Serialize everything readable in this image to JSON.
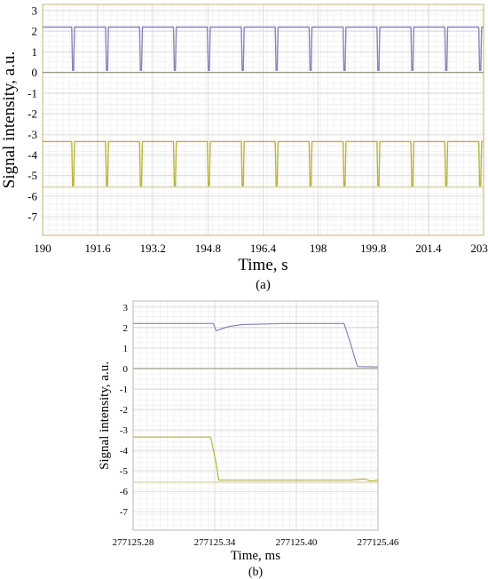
{
  "chart_data": [
    {
      "type": "line",
      "panel_label": "(a)",
      "xlabel": "Time, s",
      "ylabel": "Signal intensity, a.u.",
      "xlim": [
        190,
        203
      ],
      "ylim": [
        -7.9,
        3.3
      ],
      "xticks": [
        "190",
        "191.6",
        "193.2",
        "194.8",
        "196.4",
        "198",
        "199.8",
        "201.4",
        "203.0"
      ],
      "yticks": [
        3,
        2,
        1,
        0,
        -1,
        -2,
        -3,
        -4,
        -5,
        -6,
        -7
      ],
      "grid": true,
      "series": [
        {
          "color": "#8a84b8",
          "style": "square pulse train: baseline 2.2 with narrow dips to 0.1",
          "baseline": 2.2,
          "dip_level": 0.1,
          "dip_times": [
            190.9,
            191.9,
            192.9,
            193.9,
            194.9,
            195.9,
            196.9,
            197.9,
            198.9,
            199.9,
            200.9,
            201.9,
            202.9
          ]
        },
        {
          "color": "#9c9a88",
          "style": "flat reference line",
          "baseline": 0.0
        },
        {
          "color": "#b9b53a",
          "style": "square pulse train: baseline -3.35 with narrow dips to -5.5",
          "baseline": -3.35,
          "dip_level": -5.5,
          "dip_times": [
            190.9,
            191.9,
            192.9,
            193.9,
            194.9,
            195.9,
            196.9,
            197.9,
            198.9,
            199.9,
            200.9,
            201.9,
            202.9
          ]
        },
        {
          "color": "#d8d5a8",
          "style": "flat reference line",
          "baseline": -5.55
        }
      ]
    },
    {
      "type": "line",
      "panel_label": "(b)",
      "xlabel": "Time, ms",
      "ylabel": "Signal intensity, a.u.",
      "xlim": [
        277125.28,
        277125.46
      ],
      "ylim": [
        -7.9,
        3.3
      ],
      "xticks": [
        "277125.28",
        "277125.34",
        "277125.40",
        "277125.46"
      ],
      "yticks": [
        3,
        2,
        1,
        0,
        -1,
        -2,
        -3,
        -4,
        -5,
        -6,
        -7
      ],
      "grid": true,
      "series": [
        {
          "color": "#8a84b8",
          "x": [
            277125.28,
            277125.339,
            277125.341,
            277125.35,
            277125.36,
            277125.39,
            277125.435,
            277125.44,
            277125.443,
            277125.445,
            277125.46
          ],
          "y": [
            2.2,
            2.2,
            1.85,
            2.05,
            2.15,
            2.2,
            2.2,
            1.2,
            0.5,
            0.1,
            0.08
          ]
        },
        {
          "color": "#9c9a88",
          "x": [
            277125.28,
            277125.46
          ],
          "y": [
            0.0,
            0.0
          ]
        },
        {
          "color": "#b9b53a",
          "x": [
            277125.28,
            277125.337,
            277125.341,
            277125.343,
            277125.4,
            277125.44,
            277125.45,
            277125.455,
            277125.46
          ],
          "y": [
            -3.35,
            -3.35,
            -4.6,
            -5.45,
            -5.45,
            -5.45,
            -5.4,
            -5.5,
            -5.45
          ]
        },
        {
          "color": "#d8d5a8",
          "x": [
            277125.28,
            277125.46
          ],
          "y": [
            -5.55,
            -5.55
          ]
        }
      ]
    }
  ]
}
